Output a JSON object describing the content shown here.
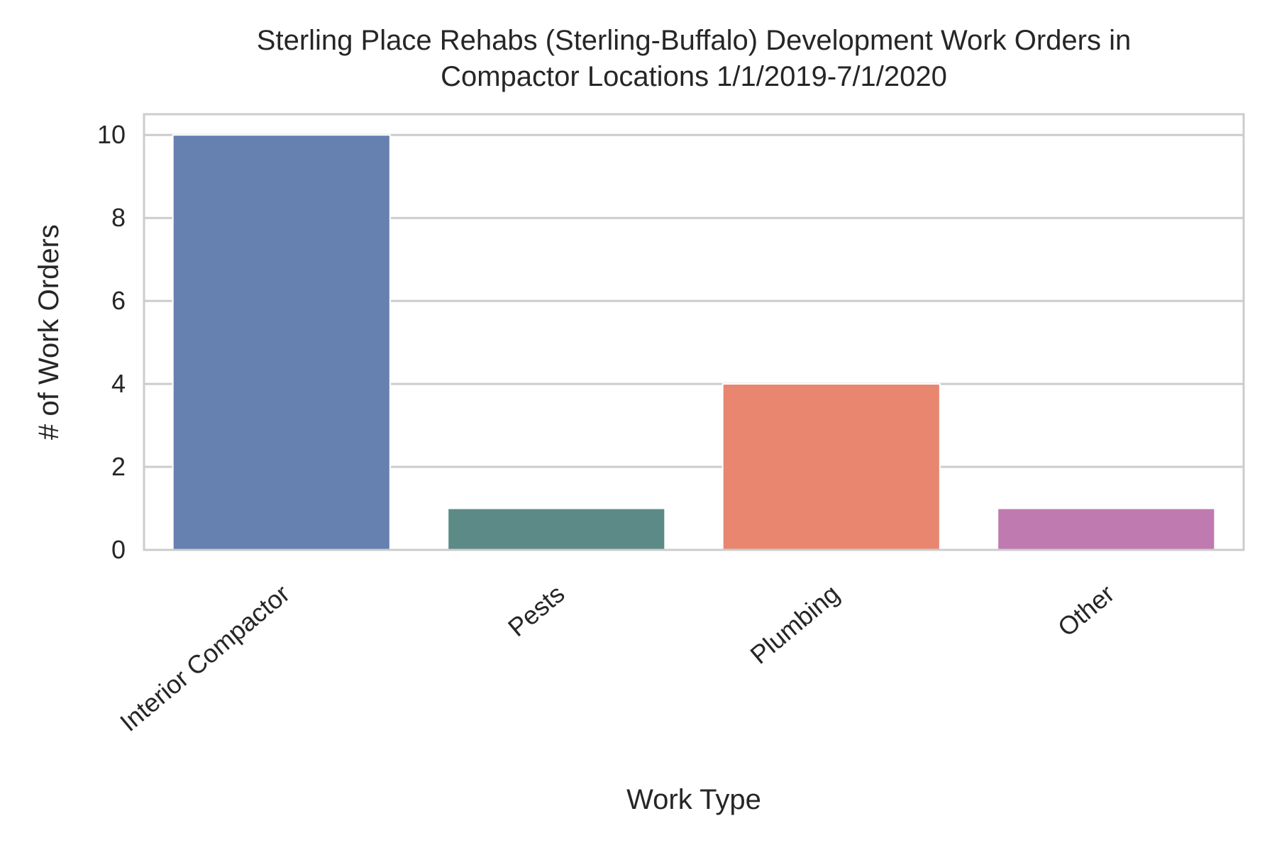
{
  "chart_data": {
    "type": "bar",
    "title_lines": [
      "Sterling Place Rehabs (Sterling-Buffalo) Development Work Orders in",
      "Compactor Locations 1/1/2019-7/1/2020"
    ],
    "xlabel": "Work Type",
    "ylabel": "# of Work Orders",
    "categories": [
      "Interior Compactor",
      "Pests",
      "Plumbing",
      "Other"
    ],
    "values": [
      10,
      1,
      4,
      1
    ],
    "colors": [
      "#6680b0",
      "#5c8a87",
      "#e8866f",
      "#bf7ab0"
    ],
    "ylim": [
      0,
      10.5
    ],
    "yticks": [
      0,
      2,
      4,
      6,
      8,
      10
    ],
    "grid": true,
    "legend": "none"
  }
}
